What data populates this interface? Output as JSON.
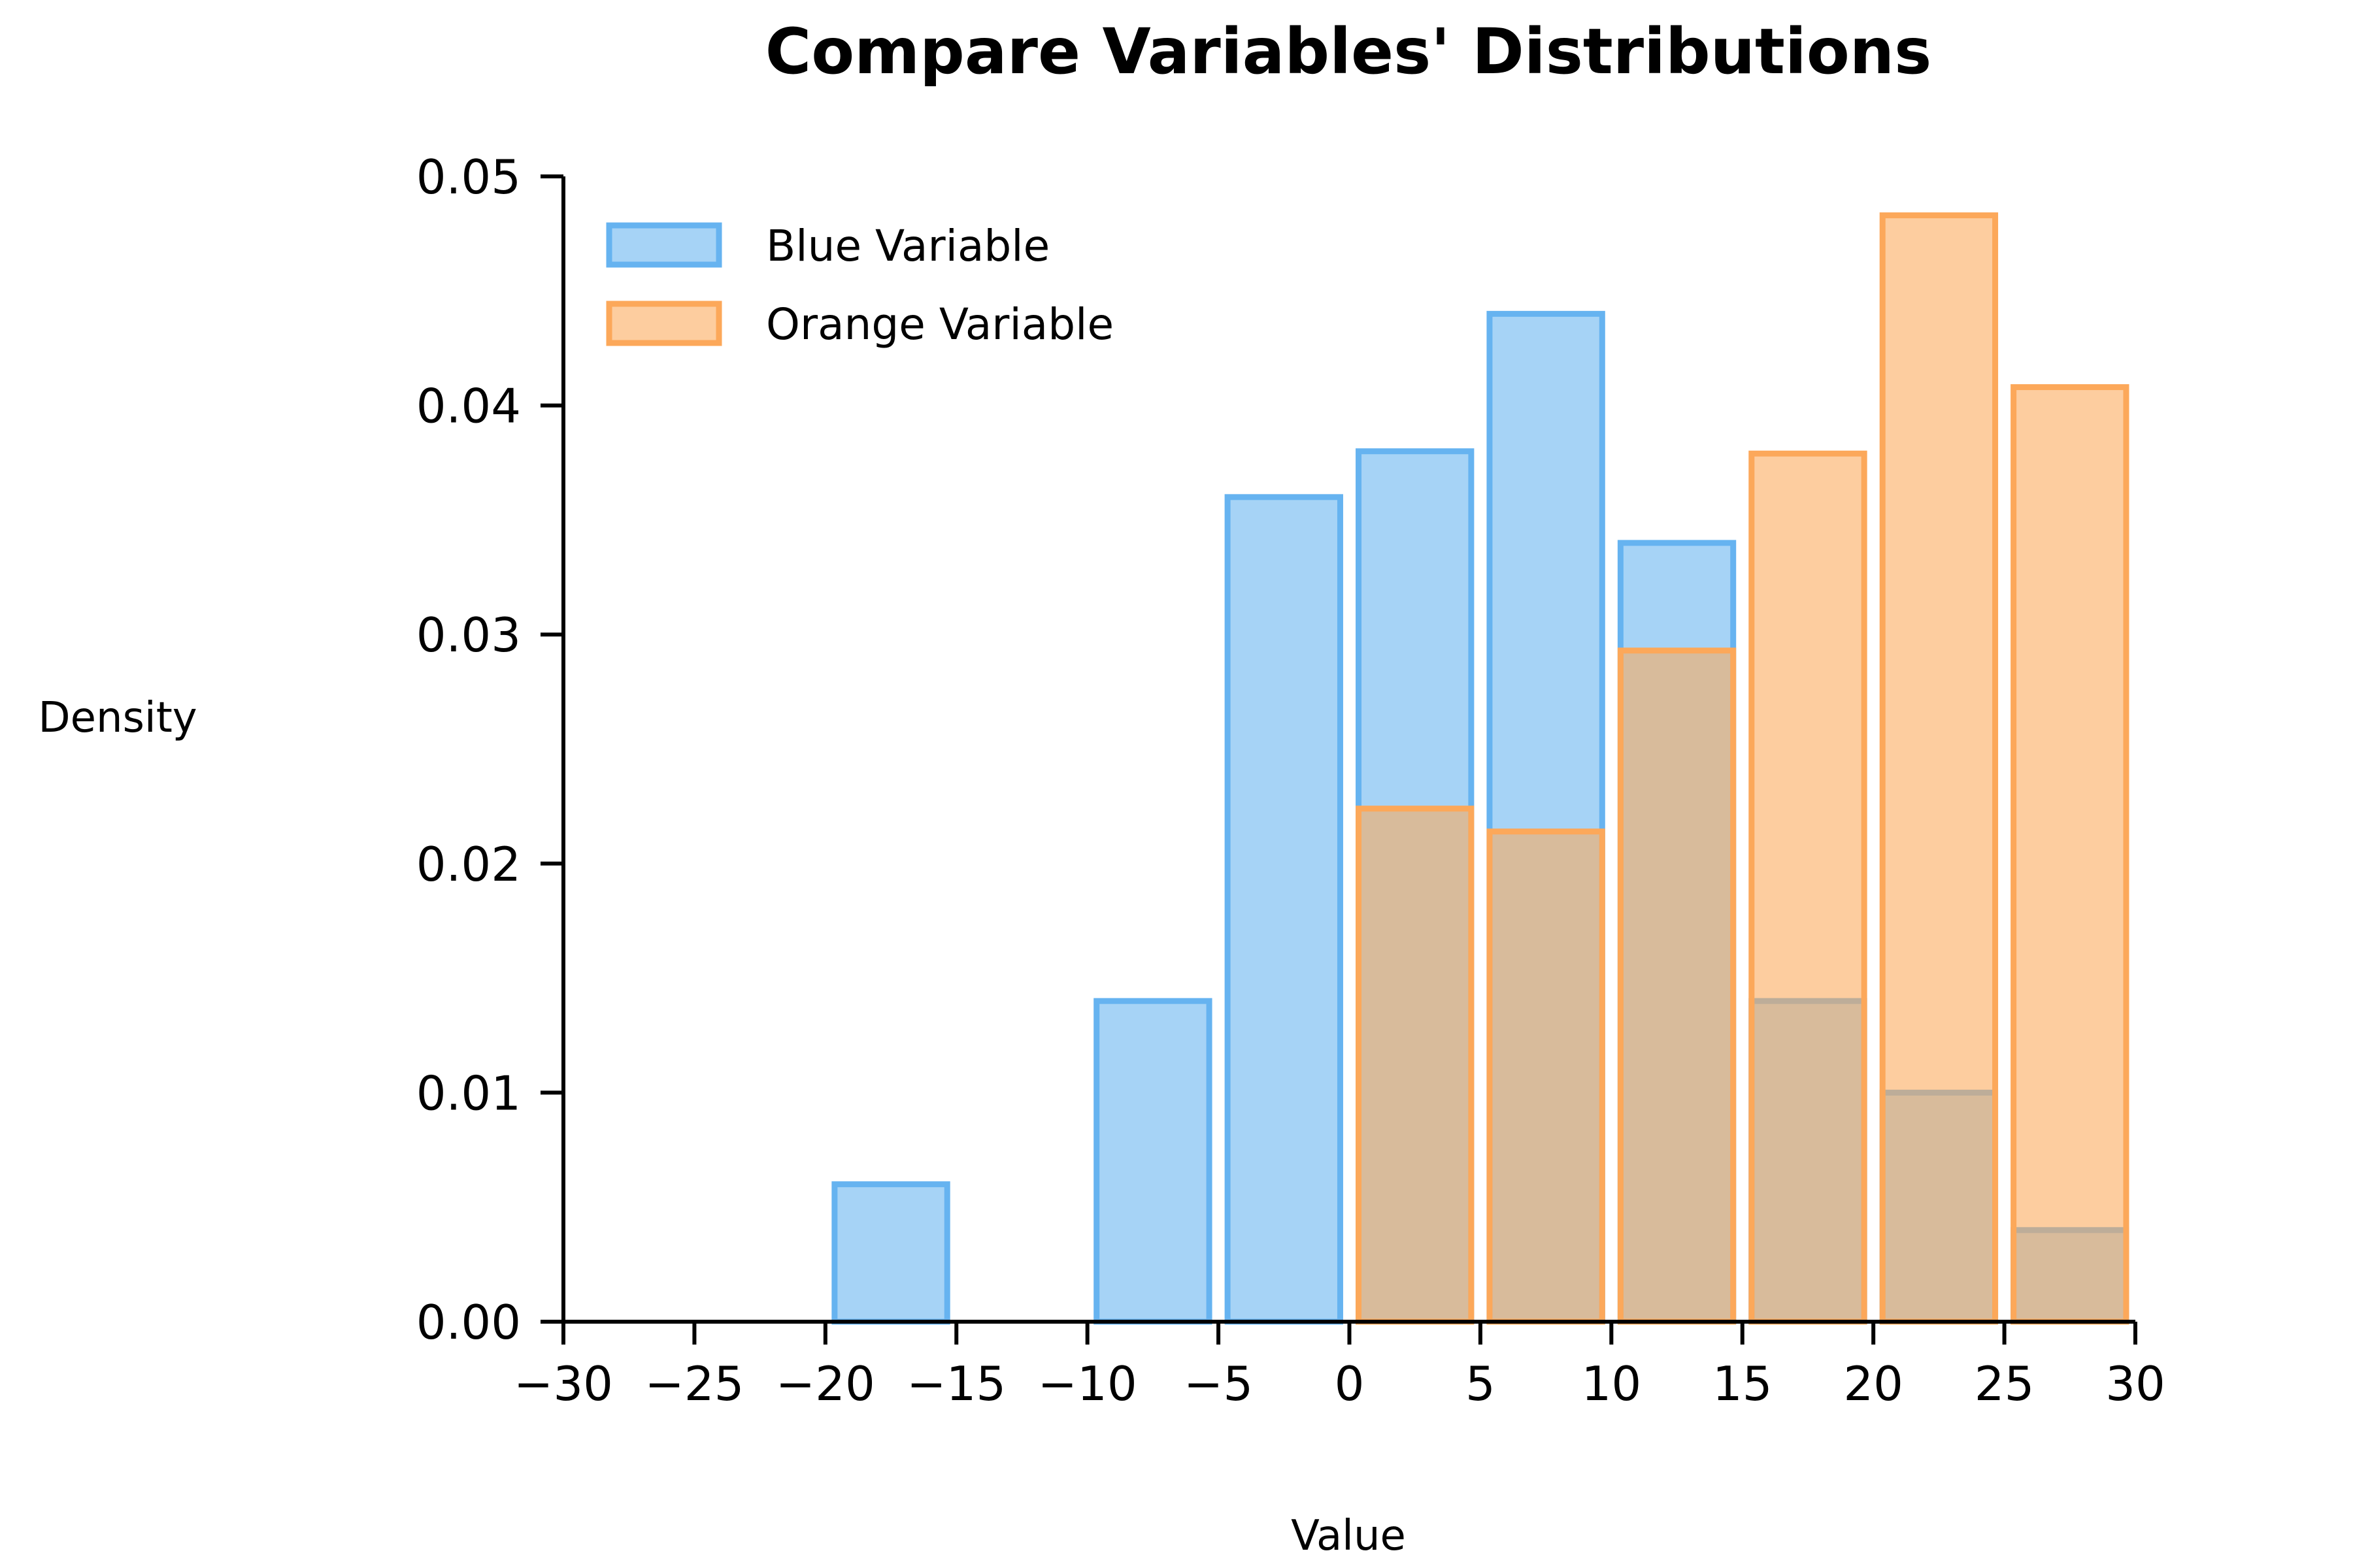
{
  "chart_data": {
    "type": "bar",
    "title": "Compare Variables' Distributions",
    "xlabel": "Value",
    "ylabel": "Density",
    "xlim": [
      -30,
      30
    ],
    "ylim": [
      0,
      0.05
    ],
    "xticks": [
      "−30",
      "−25",
      "−20",
      "−15",
      "−10",
      "−5",
      "0",
      "5",
      "10",
      "15",
      "20",
      "25",
      "30"
    ],
    "yticks": [
      "0.00",
      "0.01",
      "0.02",
      "0.03",
      "0.04",
      "0.05"
    ],
    "bin_edges": [
      -30,
      -25,
      -20,
      -15,
      -10,
      -5,
      0,
      5,
      10,
      15,
      20,
      25,
      30
    ],
    "legend_position": "top-left",
    "grid": false,
    "series": [
      {
        "name": "Blue Variable",
        "color": "#66b3f0",
        "values": [
          0.0,
          0.0,
          0.006,
          0.0,
          0.014,
          0.036,
          0.038,
          0.044,
          0.034,
          0.014,
          0.01,
          0.004
        ]
      },
      {
        "name": "Orange Variable",
        "color": "#fca85a",
        "values": [
          0.0,
          0.0,
          0.0,
          0.0,
          0.0,
          0.0,
          0.0224,
          0.0214,
          0.0293,
          0.0379,
          0.0483,
          0.0408
        ]
      }
    ]
  }
}
